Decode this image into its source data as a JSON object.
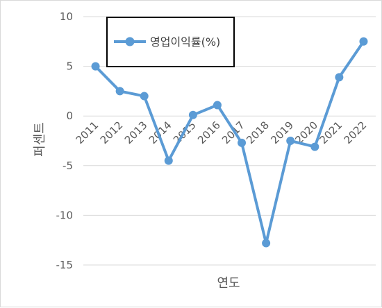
{
  "chart_data": {
    "type": "line",
    "xlabel": "연도",
    "ylabel": "퍼센트",
    "x": [
      "2011",
      "2012",
      "2013",
      "2014",
      "2015",
      "2016",
      "2017",
      "2018",
      "2019",
      "2020",
      "2021",
      "2022"
    ],
    "series": [
      {
        "name": "영업이익률(%)",
        "values": [
          5.0,
          2.5,
          2.0,
          -4.5,
          0.1,
          1.1,
          -2.7,
          -12.8,
          -2.5,
          -3.1,
          3.9,
          7.5
        ]
      }
    ],
    "yticks": [
      "10",
      "5",
      "0",
      "-5",
      "-10",
      "-15"
    ],
    "ylim": [
      -15,
      10
    ],
    "grid": "horizontal",
    "legend_position": "top-left",
    "colors": {
      "series": "#5b9bd5",
      "grid": "#d9d9d9",
      "text": "#595959"
    }
  }
}
